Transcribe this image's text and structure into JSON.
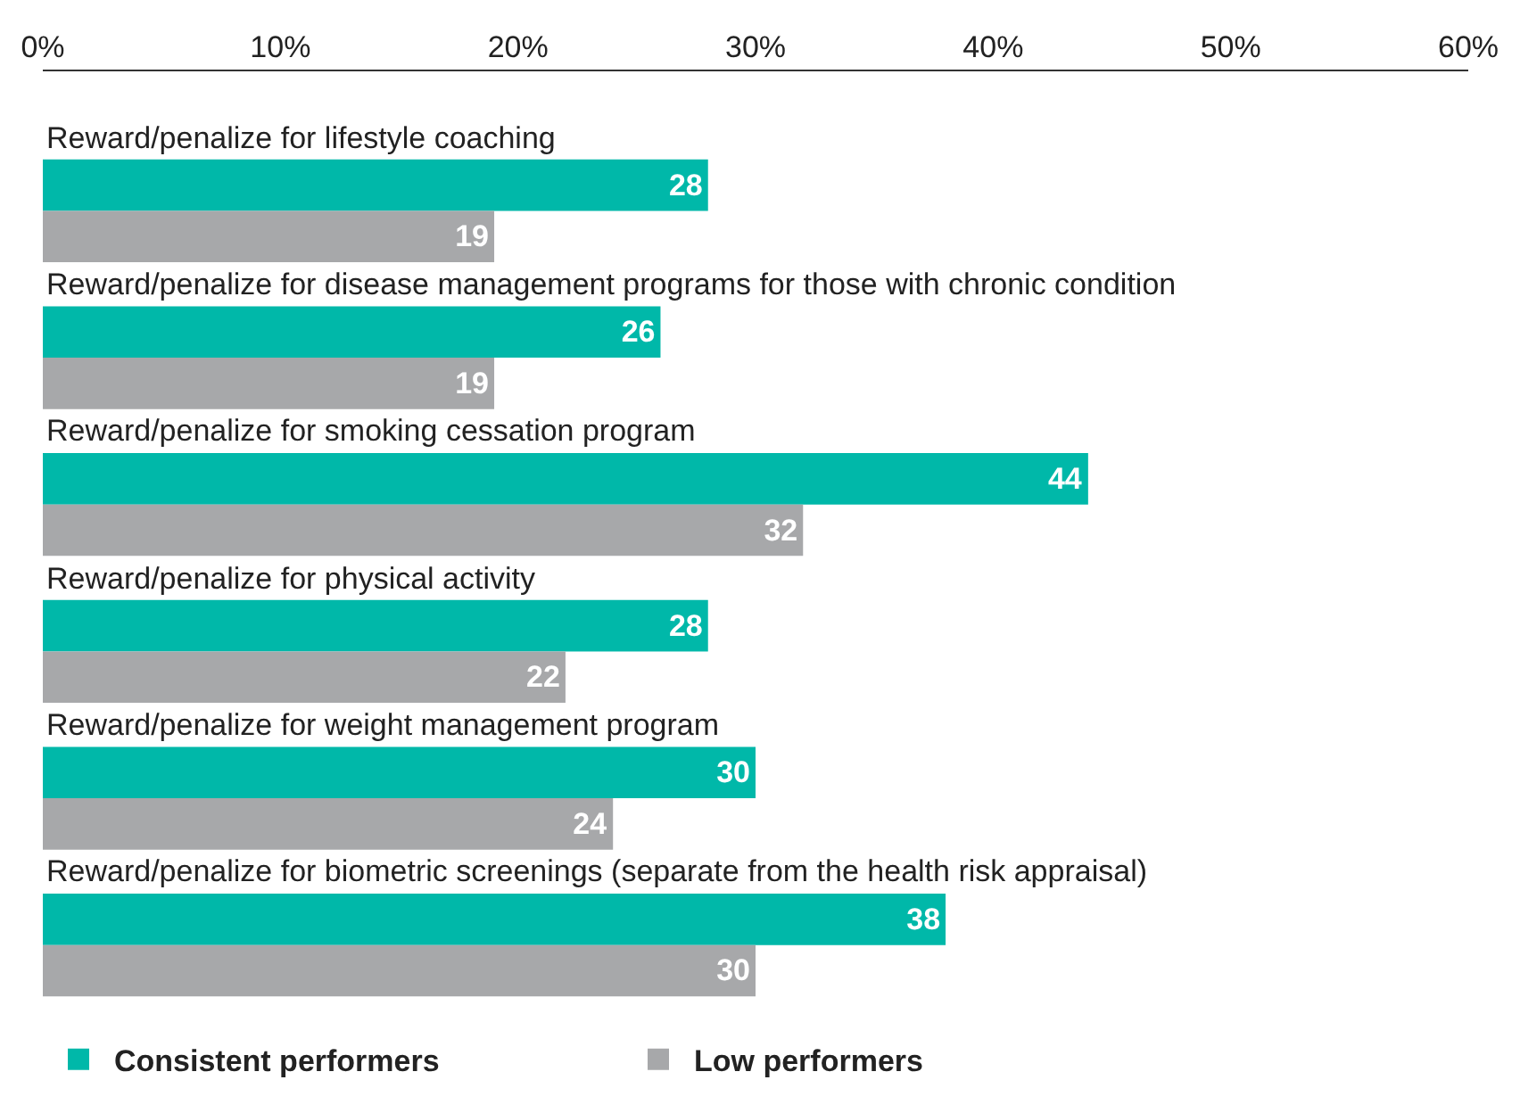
{
  "chart_data": {
    "type": "bar",
    "orientation": "horizontal",
    "categories": [
      "Reward/penalize for lifestyle coaching",
      "Reward/penalize for disease management programs for those with chronic condition",
      "Reward/penalize for smoking cessation program",
      "Reward/penalize for physical activity",
      "Reward/penalize for weight management program",
      "Reward/penalize for biometric screenings (separate from the health risk appraisal)"
    ],
    "series": [
      {
        "name": "Consistent performers",
        "color": "#00b8a9",
        "values": [
          28,
          26,
          44,
          28,
          30,
          38
        ]
      },
      {
        "name": "Low performers",
        "color": "#a7a8aa",
        "values": [
          19,
          19,
          32,
          22,
          24,
          30
        ]
      }
    ],
    "xlim": [
      0,
      60
    ],
    "xticks": [
      {
        "value": 0,
        "label": "0%"
      },
      {
        "value": 10,
        "label": "10%"
      },
      {
        "value": 20,
        "label": "20%"
      },
      {
        "value": 30,
        "label": "30%"
      },
      {
        "value": 40,
        "label": "40%"
      },
      {
        "value": 50,
        "label": "50%"
      },
      {
        "value": 60,
        "label": "60%"
      }
    ],
    "data_labels": true,
    "legend": "bottom left"
  }
}
